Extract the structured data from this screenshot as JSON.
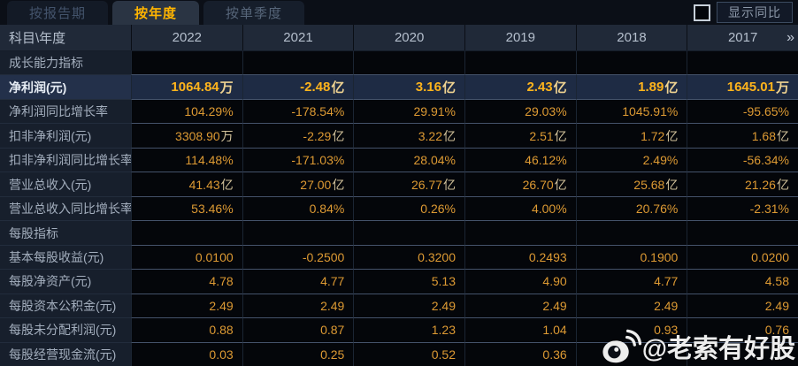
{
  "tabs": [
    {
      "label": "按报告期",
      "active": false
    },
    {
      "label": "按年度",
      "active": true
    },
    {
      "label": "按单季度",
      "active": false
    }
  ],
  "controls": {
    "show_yoy_label": "显示同比",
    "checkbox_checked": false
  },
  "table": {
    "corner_label": "科目\\年度",
    "years": [
      "2022",
      "2021",
      "2020",
      "2019",
      "2018",
      "2017"
    ],
    "more_label": "»",
    "rows": [
      {
        "type": "section",
        "label": "成长能力指标",
        "values": [
          "",
          "",
          "",
          "",
          "",
          ""
        ]
      },
      {
        "type": "data",
        "highlight": true,
        "label": "净利润(元)",
        "values": [
          "1064.84万",
          "-2.48亿",
          "3.16亿",
          "2.43亿",
          "1.89亿",
          "1645.01万"
        ]
      },
      {
        "type": "data",
        "highlight": false,
        "label": "净利润同比增长率",
        "values": [
          "104.29%",
          "-178.54%",
          "29.91%",
          "29.03%",
          "1045.91%",
          "-95.65%"
        ]
      },
      {
        "type": "data",
        "highlight": false,
        "label": "扣非净利润(元)",
        "values": [
          "3308.90万",
          "-2.29亿",
          "3.22亿",
          "2.51亿",
          "1.72亿",
          "1.68亿"
        ]
      },
      {
        "type": "data",
        "highlight": false,
        "label": "扣非净利润同比增长率",
        "values": [
          "114.48%",
          "-171.03%",
          "28.04%",
          "46.12%",
          "2.49%",
          "-56.34%"
        ]
      },
      {
        "type": "data",
        "highlight": false,
        "label": "营业总收入(元)",
        "values": [
          "41.43亿",
          "27.00亿",
          "26.77亿",
          "26.70亿",
          "25.68亿",
          "21.26亿"
        ]
      },
      {
        "type": "data",
        "highlight": false,
        "label": "营业总收入同比增长率",
        "values": [
          "53.46%",
          "0.84%",
          "0.26%",
          "4.00%",
          "20.76%",
          "-2.31%"
        ]
      },
      {
        "type": "section",
        "label": "每股指标",
        "values": [
          "",
          "",
          "",
          "",
          "",
          ""
        ]
      },
      {
        "type": "data",
        "highlight": false,
        "label": "基本每股收益(元)",
        "values": [
          "0.0100",
          "-0.2500",
          "0.3200",
          "0.2493",
          "0.1900",
          "0.0200"
        ]
      },
      {
        "type": "data",
        "highlight": false,
        "label": "每股净资产(元)",
        "values": [
          "4.78",
          "4.77",
          "5.13",
          "4.90",
          "4.77",
          "4.58"
        ]
      },
      {
        "type": "data",
        "highlight": false,
        "label": "每股资本公积金(元)",
        "values": [
          "2.49",
          "2.49",
          "2.49",
          "2.49",
          "2.49",
          "2.49"
        ]
      },
      {
        "type": "data",
        "highlight": false,
        "label": "每股未分配利润(元)",
        "values": [
          "0.88",
          "0.87",
          "1.23",
          "1.04",
          "0.93",
          "0.76"
        ]
      },
      {
        "type": "data",
        "highlight": false,
        "label": "每股经营现金流(元)",
        "values": [
          "0.03",
          "0.25",
          "0.52",
          "0.36",
          "",
          ""
        ]
      }
    ]
  },
  "watermark": {
    "icon": "weibo-icon",
    "text": "@老索有好股"
  },
  "colors": {
    "accent_gold_active": "#ffb400",
    "value_gold": "#dd9a33",
    "highlight_row_bg": "#1e2b44",
    "label_col_bg": "#171f2c",
    "header_row_bg": "#202938"
  }
}
